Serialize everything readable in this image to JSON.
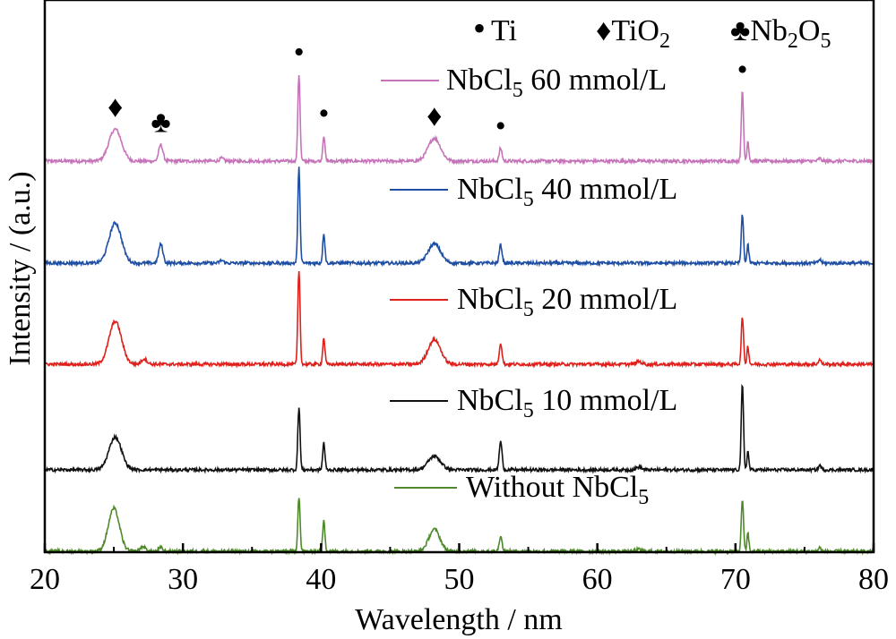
{
  "chart_data": {
    "type": "line",
    "xlabel": "Wavelength / nm",
    "ylabel": "Intensity / (a.u.)",
    "xlim": [
      20,
      80
    ],
    "x_ticks": [
      "20",
      "30",
      "40",
      "50",
      "60",
      "70",
      "80"
    ],
    "y_ticks_labeled": false,
    "grid": false,
    "legend_position": "inline, right of each trace",
    "phase_legend": [
      {
        "symbol": "•",
        "base": "Ti",
        "sub": "",
        "tail": ""
      },
      {
        "symbol": "♦",
        "base": "TiO",
        "sub": "2",
        "tail": ""
      },
      {
        "symbol": "♣",
        "base": "Nb",
        "sub": "2",
        "tail": "O",
        "sub2": "5"
      }
    ],
    "series": [
      {
        "name": "NbCl5 60 mmol/L",
        "label_base": "NbCl",
        "label_sub": "5",
        "label_tail": " 60 mmol/L",
        "color": "#C674B9",
        "baseline": 0,
        "peaks": [
          [
            25.1,
            3.5,
            0.45
          ],
          [
            28.4,
            1.8,
            0.15
          ],
          [
            32.8,
            0.3,
            0.15
          ],
          [
            38.4,
            9.5,
            0.08
          ],
          [
            40.2,
            2.8,
            0.08
          ],
          [
            48.2,
            2.5,
            0.45
          ],
          [
            53.0,
            1.4,
            0.1
          ],
          [
            70.5,
            7.6,
            0.08
          ],
          [
            70.9,
            2.2,
            0.07
          ],
          [
            76.1,
            0.3,
            0.1
          ]
        ]
      },
      {
        "name": "NbCl5 40 mmol/L",
        "label_base": "NbCl",
        "label_sub": "5",
        "label_tail": " 40 mmol/L",
        "color": "#1F4FA3",
        "baseline": 0,
        "peaks": [
          [
            25.1,
            4.4,
            0.45
          ],
          [
            28.4,
            2.1,
            0.15
          ],
          [
            32.8,
            0.3,
            0.15
          ],
          [
            38.4,
            10.4,
            0.08
          ],
          [
            40.2,
            3.3,
            0.08
          ],
          [
            48.2,
            2.1,
            0.45
          ],
          [
            53.0,
            2.0,
            0.1
          ],
          [
            70.5,
            5.3,
            0.08
          ],
          [
            70.9,
            2.0,
            0.07
          ],
          [
            76.1,
            0.4,
            0.1
          ]
        ]
      },
      {
        "name": "NbCl5 20 mmol/L",
        "label_base": "NbCl",
        "label_sub": "5",
        "label_tail": " 20 mmol/L",
        "color": "#E0201B",
        "baseline": 0,
        "peaks": [
          [
            25.1,
            4.7,
            0.45
          ],
          [
            27.2,
            0.6,
            0.2
          ],
          [
            38.4,
            10.3,
            0.08
          ],
          [
            40.2,
            2.9,
            0.08
          ],
          [
            48.2,
            2.7,
            0.45
          ],
          [
            53.0,
            2.3,
            0.1
          ],
          [
            63.0,
            0.3,
            0.2
          ],
          [
            70.5,
            5.2,
            0.08
          ],
          [
            70.9,
            2.0,
            0.07
          ],
          [
            76.1,
            0.5,
            0.1
          ]
        ]
      },
      {
        "name": "NbCl5 10 mmol/L",
        "label_base": "NbCl",
        "label_sub": "5",
        "label_tail": " 10 mmol/L",
        "color": "#111111",
        "baseline": 0,
        "peaks": [
          [
            25.1,
            3.6,
            0.45
          ],
          [
            38.4,
            6.9,
            0.08
          ],
          [
            40.2,
            3.0,
            0.08
          ],
          [
            48.2,
            1.5,
            0.45
          ],
          [
            53.0,
            3.1,
            0.1
          ],
          [
            63.0,
            0.3,
            0.2
          ],
          [
            70.5,
            9.3,
            0.08
          ],
          [
            70.9,
            2.0,
            0.07
          ],
          [
            76.1,
            0.5,
            0.1
          ]
        ]
      },
      {
        "name": "Without NbCl5",
        "label_base": "Without NbCl",
        "label_sub": "5",
        "label_tail": "",
        "color": "#4E8A2A",
        "baseline": 0,
        "peaks": [
          [
            25.0,
            4.7,
            0.4
          ],
          [
            27.1,
            0.5,
            0.2
          ],
          [
            28.4,
            0.4,
            0.15
          ],
          [
            38.4,
            6.0,
            0.08
          ],
          [
            40.2,
            3.5,
            0.08
          ],
          [
            48.2,
            2.4,
            0.4
          ],
          [
            53.0,
            1.7,
            0.1
          ],
          [
            63.0,
            0.2,
            0.2
          ],
          [
            70.5,
            5.7,
            0.08
          ],
          [
            70.9,
            2.0,
            0.07
          ],
          [
            76.1,
            0.4,
            0.1
          ]
        ]
      }
    ],
    "annotations": [
      {
        "series": "NbCl5 60 mmol/L",
        "x": 25.1,
        "symbol": "♦"
      },
      {
        "series": "NbCl5 60 mmol/L",
        "x": 28.4,
        "symbol": "♣"
      },
      {
        "series": "NbCl5 60 mmol/L",
        "x": 38.4,
        "symbol": "•"
      },
      {
        "series": "NbCl5 60 mmol/L",
        "x": 40.2,
        "symbol": "•"
      },
      {
        "series": "NbCl5 60 mmol/L",
        "x": 48.2,
        "symbol": "♦"
      },
      {
        "series": "NbCl5 60 mmol/L",
        "x": 53.0,
        "symbol": "•"
      },
      {
        "series": "NbCl5 60 mmol/L",
        "x": 70.5,
        "symbol": "•"
      }
    ]
  }
}
